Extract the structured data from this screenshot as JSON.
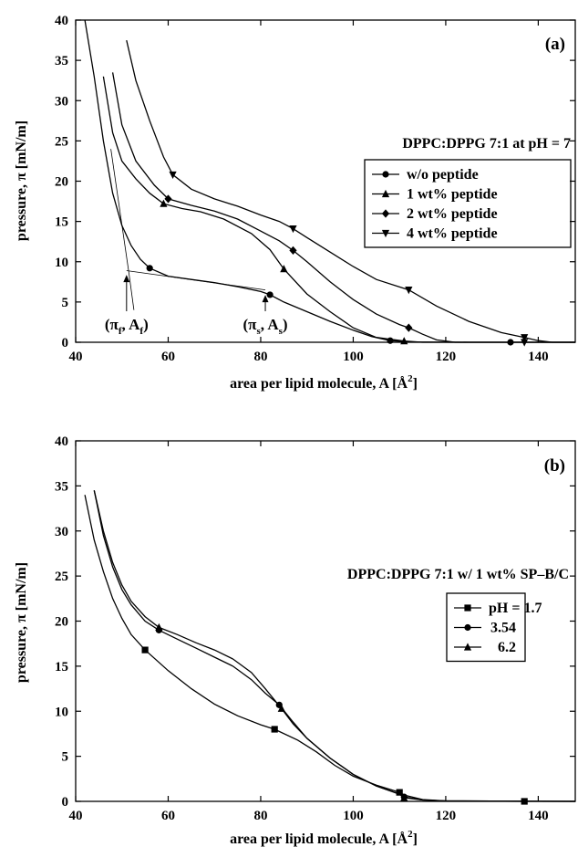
{
  "chart_data": [
    {
      "type": "line",
      "panel_label": "(a)",
      "condition": "DPPC:DPPG 7:1 at pH = 7",
      "xlabel": "area per lipid molecule, A [Å²]",
      "xlabel_main": "area per lipid molecule, A [Å",
      "xlabel_sup": "2",
      "xlabel_end": "]",
      "ylabel": "pressure, π [mN/m]",
      "xlim": [
        40,
        148
      ],
      "ylim": [
        0,
        40
      ],
      "xticks": [
        "40",
        "60",
        "80",
        "100",
        "120",
        "140"
      ],
      "yticks": [
        "0",
        "5",
        "10",
        "15",
        "20",
        "25",
        "30",
        "35",
        "40"
      ],
      "legend_position": "right",
      "series": [
        {
          "name": "w/o peptide",
          "marker": "circle",
          "points": [
            [
              42,
              40
            ],
            [
              44,
              33
            ],
            [
              46,
              25
            ],
            [
              48,
              18.5
            ],
            [
              50,
              14.5
            ],
            [
              52,
              12
            ],
            [
              54,
              10.3
            ],
            [
              56,
              9.2
            ],
            [
              60,
              8.2
            ],
            [
              65,
              7.8
            ],
            [
              70,
              7.4
            ],
            [
              75,
              6.9
            ],
            [
              80,
              6.3
            ],
            [
              82,
              5.9
            ],
            [
              85,
              5.0
            ],
            [
              90,
              3.8
            ],
            [
              95,
              2.6
            ],
            [
              100,
              1.5
            ],
            [
              104,
              0.7
            ],
            [
              108,
              0.2
            ],
            [
              112,
              0.05
            ],
            [
              125,
              0
            ],
            [
              134,
              0
            ],
            [
              137,
              0
            ],
            [
              148,
              0
            ]
          ],
          "markers": [
            [
              56,
              9.2
            ],
            [
              82,
              5.9
            ],
            [
              108,
              0.2
            ],
            [
              134,
              0
            ]
          ]
        },
        {
          "name": "1 wt% peptide",
          "marker": "triangle-up",
          "points": [
            [
              46,
              33
            ],
            [
              48,
              26
            ],
            [
              50,
              22.5
            ],
            [
              53,
              20.3
            ],
            [
              56,
              18.5
            ],
            [
              59,
              17.2
            ],
            [
              63,
              16.6
            ],
            [
              67,
              16.2
            ],
            [
              72,
              15.3
            ],
            [
              78,
              13.5
            ],
            [
              82,
              11.5
            ],
            [
              85,
              9.1
            ],
            [
              90,
              6
            ],
            [
              95,
              3.8
            ],
            [
              100,
              1.8
            ],
            [
              105,
              0.6
            ],
            [
              111,
              0.15
            ],
            [
              115,
              0
            ],
            [
              148,
              0
            ]
          ],
          "markers": [
            [
              59,
              17.2
            ],
            [
              85,
              9.1
            ],
            [
              111,
              0.15
            ]
          ]
        },
        {
          "name": "2 wt% peptide",
          "marker": "diamond",
          "points": [
            [
              48,
              33.5
            ],
            [
              50,
              27
            ],
            [
              53,
              22.5
            ],
            [
              57,
              19.5
            ],
            [
              60,
              17.8
            ],
            [
              65,
              17
            ],
            [
              70,
              16.3
            ],
            [
              75,
              15.3
            ],
            [
              80,
              13.8
            ],
            [
              84,
              12.6
            ],
            [
              87,
              11.4
            ],
            [
              90,
              10
            ],
            [
              95,
              7.5
            ],
            [
              100,
              5.3
            ],
            [
              105,
              3.5
            ],
            [
              110,
              2.2
            ],
            [
              112,
              1.8
            ],
            [
              115,
              1
            ],
            [
              118,
              0.3
            ],
            [
              122,
              0
            ],
            [
              148,
              0
            ]
          ],
          "markers": [
            [
              60,
              17.8
            ],
            [
              87,
              11.4
            ],
            [
              112,
              1.8
            ]
          ]
        },
        {
          "name": "4 wt% peptide",
          "marker": "triangle-down",
          "points": [
            [
              51,
              37.5
            ],
            [
              53,
              32.5
            ],
            [
              56,
              27.5
            ],
            [
              59,
              23
            ],
            [
              61,
              20.8
            ],
            [
              65,
              19
            ],
            [
              70,
              17.8
            ],
            [
              75,
              16.9
            ],
            [
              80,
              15.8
            ],
            [
              84,
              15
            ],
            [
              87,
              14.1
            ],
            [
              90,
              13
            ],
            [
              95,
              11.2
            ],
            [
              100,
              9.4
            ],
            [
              105,
              7.8
            ],
            [
              112,
              6.5
            ],
            [
              118,
              4.5
            ],
            [
              125,
              2.6
            ],
            [
              132,
              1.2
            ],
            [
              137,
              0.6
            ],
            [
              140,
              0.2
            ],
            [
              143,
              0
            ],
            [
              148,
              0
            ]
          ],
          "markers": [
            [
              61,
              20.8
            ],
            [
              87,
              14.1
            ],
            [
              112,
              6.5
            ],
            [
              137,
              0.6
            ],
            [
              137,
              0
            ]
          ]
        }
      ],
      "annotations": [
        {
          "label": "(π_f, A_f)",
          "tex": [
            "(π",
            "f",
            ", A",
            "f",
            ")"
          ],
          "arrow_x": 51,
          "arrow_y": 8.6
        },
        {
          "label": "(π_s, A_s)",
          "tex": [
            "(π",
            "s",
            ", A",
            "s",
            ")"
          ],
          "arrow_x": 81,
          "arrow_y": 6.1
        }
      ],
      "tangent_lines": [
        [
          [
            47.6,
            24
          ],
          [
            51.5,
            8.6
          ],
          [
            52.6,
            4
          ]
        ],
        [
          [
            51,
            8.9
          ],
          [
            81,
            6.5
          ]
        ]
      ]
    },
    {
      "type": "line",
      "panel_label": "(b)",
      "condition": "DPPC:DPPG 7:1 w/ 1 wt% SP–B/C",
      "xlabel": "area per lipid molecule, A [Å²]",
      "xlabel_main": "area per lipid molecule, A   [Å",
      "xlabel_sup": "2",
      "xlabel_end": "]",
      "ylabel": "pressure, π [mN/m]",
      "xlim": [
        40,
        148
      ],
      "ylim": [
        0,
        40
      ],
      "xticks": [
        "40",
        "60",
        "80",
        "100",
        "120",
        "140"
      ],
      "yticks": [
        "0",
        "5",
        "10",
        "15",
        "20",
        "25",
        "30",
        "35",
        "40"
      ],
      "legend_position": "right",
      "series": [
        {
          "name": "pH = 1.7",
          "marker": "square",
          "points": [
            [
              42,
              34
            ],
            [
              44,
              29
            ],
            [
              46,
              25.5
            ],
            [
              48,
              22.5
            ],
            [
              50,
              20.3
            ],
            [
              52,
              18.5
            ],
            [
              55,
              16.8
            ],
            [
              60,
              14.5
            ],
            [
              65,
              12.5
            ],
            [
              70,
              10.8
            ],
            [
              75,
              9.5
            ],
            [
              80,
              8.5
            ],
            [
              83,
              8
            ],
            [
              88,
              6.8
            ],
            [
              92,
              5.5
            ],
            [
              96,
              4
            ],
            [
              100,
              2.8
            ],
            [
              105,
              1.8
            ],
            [
              110,
              1
            ],
            [
              111,
              0.7
            ],
            [
              115,
              0.2
            ],
            [
              120,
              0.05
            ],
            [
              137,
              0
            ],
            [
              148,
              0
            ]
          ],
          "markers": [
            [
              55,
              16.8
            ],
            [
              83,
              8
            ],
            [
              110,
              1
            ],
            [
              137,
              0
            ]
          ]
        },
        {
          "name": "3.54",
          "marker": "circle",
          "points": [
            [
              44,
              34.5
            ],
            [
              46,
              29.5
            ],
            [
              48,
              26
            ],
            [
              50,
              23.5
            ],
            [
              52,
              21.8
            ],
            [
              55,
              20
            ],
            [
              58,
              19
            ],
            [
              62,
              18
            ],
            [
              66,
              17
            ],
            [
              70,
              16
            ],
            [
              74,
              15
            ],
            [
              78,
              13.5
            ],
            [
              81,
              12
            ],
            [
              84,
              10.7
            ],
            [
              87,
              8.8
            ],
            [
              90,
              7
            ],
            [
              95,
              4.8
            ],
            [
              100,
              3
            ],
            [
              105,
              1.7
            ],
            [
              110,
              0.8
            ],
            [
              111,
              0.5
            ],
            [
              115,
              0.15
            ],
            [
              120,
              0.05
            ],
            [
              148,
              0
            ]
          ],
          "markers": [
            [
              58,
              19
            ],
            [
              84,
              10.7
            ],
            [
              111,
              0.5
            ]
          ]
        },
        {
          "name": "6.2",
          "marker": "triangle-up",
          "points": [
            [
              44,
              34.5
            ],
            [
              46,
              30
            ],
            [
              48,
              26.5
            ],
            [
              50,
              24
            ],
            [
              52,
              22.2
            ],
            [
              55,
              20.5
            ],
            [
              58,
              19.3
            ],
            [
              62,
              18.5
            ],
            [
              66,
              17.6
            ],
            [
              70,
              16.8
            ],
            [
              74,
              15.8
            ],
            [
              78,
              14.3
            ],
            [
              81,
              12.5
            ],
            [
              84.5,
              10.3
            ],
            [
              87,
              8.6
            ],
            [
              90,
              7
            ],
            [
              95,
              4.8
            ],
            [
              100,
              3
            ],
            [
              105,
              1.7
            ],
            [
              110,
              0.8
            ],
            [
              111,
              0.4
            ],
            [
              115,
              0.15
            ],
            [
              120,
              0.05
            ],
            [
              148,
              0
            ]
          ],
          "markers": [
            [
              58,
              19.3
            ],
            [
              84.5,
              10.3
            ],
            [
              111,
              0.4
            ]
          ]
        }
      ]
    }
  ]
}
